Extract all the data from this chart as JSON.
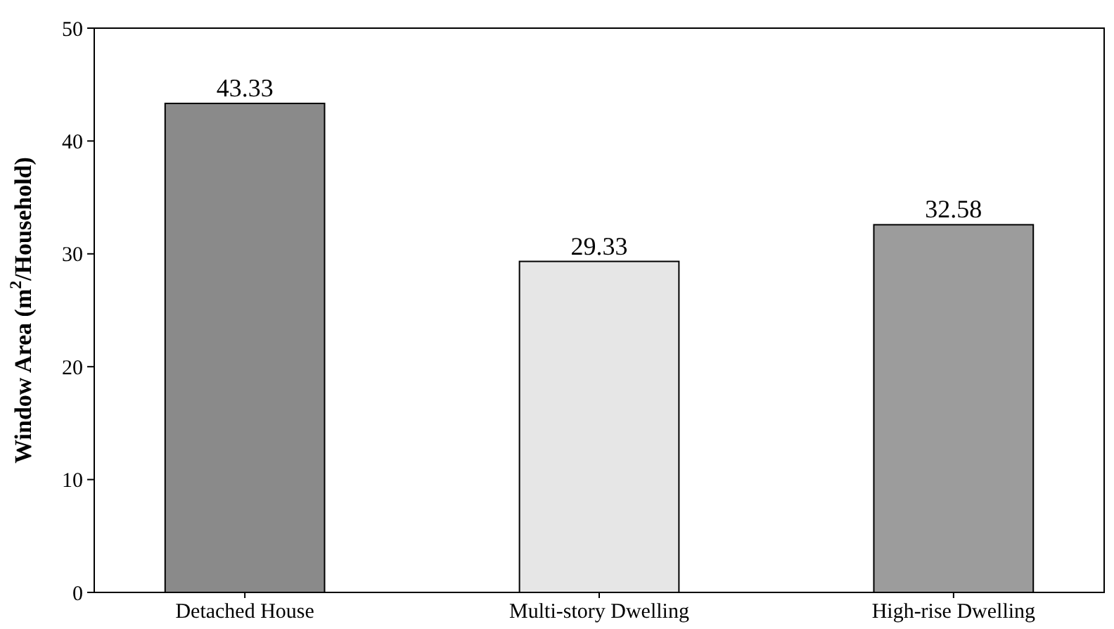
{
  "chart_data": {
    "type": "bar",
    "ylabel": "Window Area (m$^{2}$/Household)",
    "categories": [
      "Detached House",
      "Multi-story Dwelling",
      "High-rise Dwelling"
    ],
    "values": [
      43.33,
      29.33,
      32.58
    ],
    "colors": [
      "#8a8a8a",
      "#e6e6e6",
      "#9c9c9c"
    ],
    "ylim": [
      0,
      50
    ],
    "yticks": [
      0,
      10,
      20,
      30,
      40,
      50
    ],
    "data_labels": true
  }
}
